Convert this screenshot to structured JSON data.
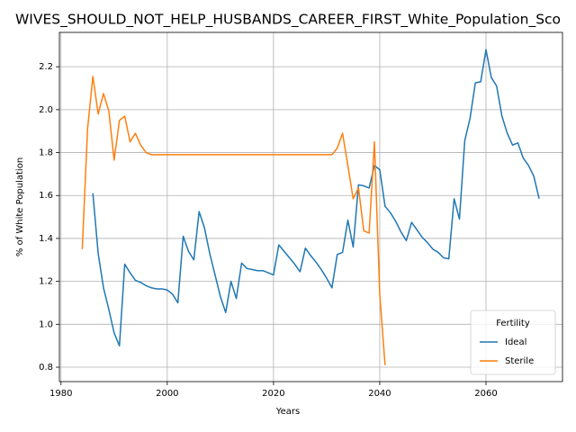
{
  "chart_data": {
    "type": "line",
    "title": "WIVES_SHOULD_NOT_HELP_HUSBANDS_CAREER_FIRST_White_Population_Sco",
    "xlabel": "Years",
    "ylabel": "% of White Population",
    "xlim": [
      1979.7,
      2074.4
    ],
    "ylim": [
      0.733,
      2.36
    ],
    "xticks": [
      1980,
      2000,
      2020,
      2040,
      2060
    ],
    "yticks": [
      0.8,
      {
        "value": 1.0,
        "label": "1.0"
      },
      1.2,
      1.4,
      1.6,
      1.8,
      {
        "value": 2.0,
        "label": "2.0"
      },
      2.2
    ],
    "grid": true,
    "legend": {
      "title": "Fertility",
      "position": "lower right"
    },
    "series": [
      {
        "name": "Ideal",
        "color": "#1f77b4",
        "x": [
          1986,
          1987,
          1988,
          1989,
          1990,
          1991,
          1992,
          1993,
          1994,
          1995,
          1996,
          1997,
          1998,
          1999,
          2000,
          2001,
          2002,
          2003,
          2004,
          2005,
          2006,
          2007,
          2008,
          2009,
          2010,
          2011,
          2012,
          2013,
          2014,
          2015,
          2016,
          2017,
          2018,
          2019,
          2020,
          2021,
          2022,
          2023,
          2024,
          2025,
          2026,
          2027,
          2028,
          2029,
          2030,
          2031,
          2032,
          2033,
          2034,
          2035,
          2036,
          2037,
          2038,
          2039,
          2040,
          2041,
          2042,
          2043,
          2044,
          2045,
          2046,
          2047,
          2048,
          2049,
          2050,
          2051,
          2052,
          2053,
          2054,
          2055,
          2056,
          2057,
          2058,
          2059,
          2060,
          2061,
          2062,
          2063,
          2064,
          2065,
          2066,
          2067,
          2068,
          2069,
          2070
        ],
        "values": [
          1.61,
          1.33,
          1.17,
          1.07,
          0.96,
          0.9,
          1.28,
          1.24,
          1.205,
          1.195,
          1.18,
          1.17,
          1.165,
          1.165,
          1.16,
          1.14,
          1.1,
          1.41,
          1.34,
          1.3,
          1.525,
          1.45,
          1.33,
          1.23,
          1.13,
          1.055,
          1.2,
          1.12,
          1.285,
          1.26,
          1.255,
          1.25,
          1.25,
          1.24,
          1.23,
          1.37,
          1.34,
          1.31,
          1.28,
          1.245,
          1.355,
          1.32,
          1.29,
          1.255,
          1.215,
          1.17,
          1.325,
          1.335,
          1.485,
          1.36,
          1.65,
          1.645,
          1.635,
          1.74,
          1.72,
          1.55,
          1.52,
          1.48,
          1.43,
          1.39,
          1.475,
          1.44,
          1.405,
          1.38,
          1.35,
          1.335,
          1.31,
          1.305,
          1.585,
          1.49,
          1.855,
          1.96,
          2.125,
          2.13,
          2.28,
          2.15,
          2.11,
          1.97,
          1.89,
          1.835,
          1.845,
          1.775,
          1.74,
          1.69,
          1.585
        ]
      },
      {
        "name": "Sterile",
        "color": "#ff7f0e",
        "x": [
          1984,
          1985,
          1986,
          1987,
          1988,
          1989,
          1990,
          1991,
          1992,
          1993,
          1994,
          1995,
          1996,
          1997,
          1998,
          1999,
          2000,
          2001,
          2002,
          2003,
          2004,
          2005,
          2006,
          2007,
          2008,
          2009,
          2010,
          2011,
          2012,
          2013,
          2014,
          2015,
          2016,
          2017,
          2018,
          2019,
          2020,
          2021,
          2022,
          2023,
          2024,
          2025,
          2026,
          2027,
          2028,
          2029,
          2030,
          2031,
          2032,
          2033,
          2034,
          2035,
          2036,
          2037,
          2038,
          2039,
          2040,
          2041
        ],
        "values": [
          1.35,
          1.91,
          2.155,
          1.98,
          2.075,
          1.995,
          1.765,
          1.95,
          1.97,
          1.85,
          1.89,
          1.835,
          1.8,
          1.79,
          1.79,
          1.79,
          1.79,
          1.79,
          1.79,
          1.79,
          1.79,
          1.79,
          1.79,
          1.79,
          1.79,
          1.79,
          1.79,
          1.79,
          1.79,
          1.79,
          1.79,
          1.79,
          1.79,
          1.79,
          1.79,
          1.79,
          1.79,
          1.79,
          1.79,
          1.79,
          1.79,
          1.79,
          1.79,
          1.79,
          1.79,
          1.79,
          1.79,
          1.79,
          1.82,
          1.89,
          1.74,
          1.585,
          1.635,
          1.435,
          1.425,
          1.85,
          1.14,
          0.81
        ]
      }
    ]
  }
}
